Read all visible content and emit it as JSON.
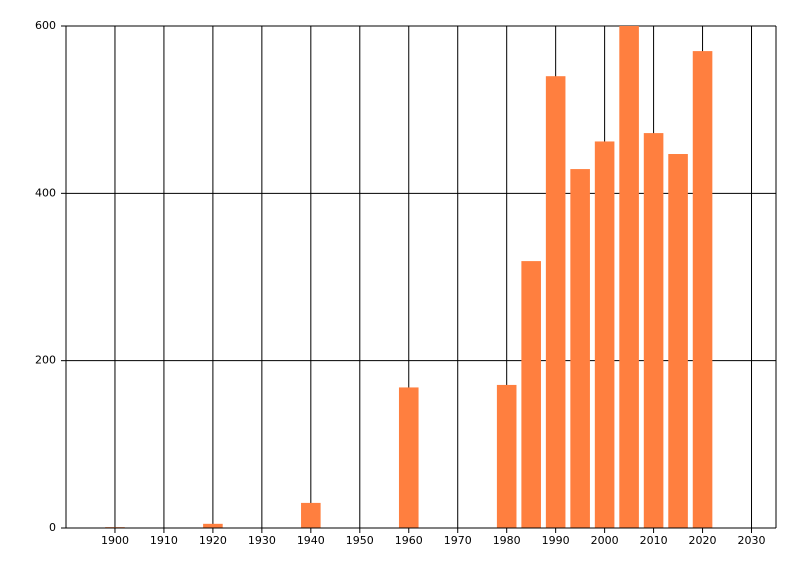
{
  "chart_data": {
    "type": "bar",
    "x": [
      1900,
      1920,
      1940,
      1960,
      1980,
      1985,
      1990,
      1995,
      2000,
      2005,
      2010,
      2015,
      2020
    ],
    "values": [
      1,
      5,
      30,
      168,
      171,
      319,
      540,
      429,
      462,
      600,
      472,
      447,
      570
    ],
    "color": "#ff7f3f",
    "xlim": [
      1890,
      2035
    ],
    "xticks": [
      1900,
      1910,
      1920,
      1930,
      1940,
      1950,
      1960,
      1970,
      1980,
      1990,
      2000,
      2010,
      2020,
      2030
    ],
    "ylim": [
      0,
      600
    ],
    "yticks": [
      0,
      200,
      400,
      600
    ],
    "grid": true
  }
}
